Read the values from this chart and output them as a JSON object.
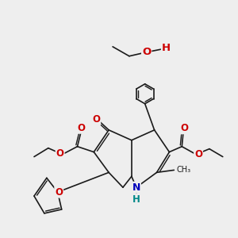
{
  "bg_color": "#eeeeee",
  "bond_color": "#1a1a1a",
  "bond_width": 1.2,
  "atom_colors": {
    "O": "#cc0000",
    "N": "#0000bb",
    "H_on_N": "#008888",
    "H_on_O": "#cc0000",
    "C": "#1a1a1a"
  },
  "font_size_atom": 8.5,
  "font_size_small": 7.0,
  "figsize": [
    3.0,
    3.0
  ],
  "dpi": 100,
  "xlim": [
    0,
    10
  ],
  "ylim": [
    0,
    10
  ]
}
